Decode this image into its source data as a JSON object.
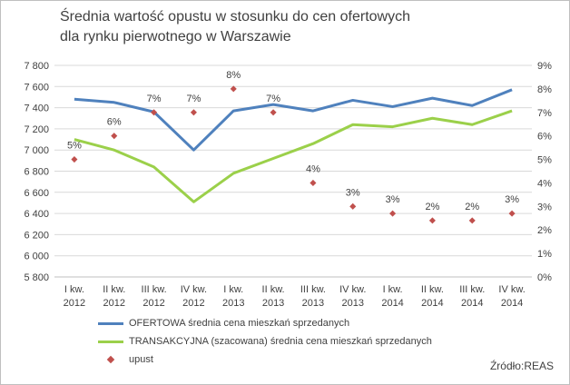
{
  "title": "Średnia wartość opustu w stosunku do cen ofertowych\ndla rynku pierwotnego w Warszawie",
  "source": "Źródło:REAS",
  "colors": {
    "ofertowa": "#4f81bd",
    "transakcyjna": "#9bd04a",
    "upust": "#c0504d",
    "grid": "#d9d9d9",
    "axis": "#bfbfbf"
  },
  "chart_data": {
    "type": "line",
    "categories": [
      [
        "I kw.",
        "2012"
      ],
      [
        "II kw.",
        "2012"
      ],
      [
        "III kw.",
        "2012"
      ],
      [
        "IV kw.",
        "2012"
      ],
      [
        "I kw.",
        "2013"
      ],
      [
        "II kw.",
        "2013"
      ],
      [
        "III kw.",
        "2013"
      ],
      [
        "IV kw.",
        "2013"
      ],
      [
        "I kw.",
        "2014"
      ],
      [
        "II kw.",
        "2014"
      ],
      [
        "III kw.",
        "2014"
      ],
      [
        "IV kw.",
        "2014"
      ]
    ],
    "y_left": {
      "min": 5800,
      "max": 7800,
      "step": 200,
      "ticks": [
        "5 800",
        "6 000",
        "6 200",
        "6 400",
        "6 600",
        "6 800",
        "7 000",
        "7 200",
        "7 400",
        "7 600",
        "7 800"
      ]
    },
    "y_right": {
      "min": 0,
      "max": 9,
      "step": 1,
      "ticks": [
        "0%",
        "1%",
        "2%",
        "3%",
        "4%",
        "5%",
        "6%",
        "7%",
        "8%",
        "9%"
      ]
    },
    "grid": "horizontal",
    "legend_position": "bottom",
    "series": [
      {
        "name": "OFERTOWA średnia cena mieszkań sprzedanych",
        "axis": "left",
        "kind": "line",
        "values": [
          7480,
          7450,
          7360,
          7000,
          7370,
          7430,
          7370,
          7470,
          7410,
          7490,
          7420,
          7570
        ]
      },
      {
        "name": "TRANSAKCYJNA (szacowana) średnia cena mieszkań sprzedanych",
        "axis": "left",
        "kind": "line",
        "values": [
          7100,
          7000,
          6840,
          6510,
          6780,
          6920,
          7060,
          7240,
          7220,
          7300,
          7240,
          7370
        ]
      },
      {
        "name": "upust",
        "axis": "right",
        "kind": "scatter",
        "values": [
          5.0,
          6.0,
          7.0,
          7.0,
          8.0,
          7.0,
          4.0,
          3.0,
          2.7,
          2.4,
          2.4,
          2.7
        ],
        "labels": [
          "5%",
          "6%",
          "7%",
          "7%",
          "8%",
          "7%",
          "4%",
          "3%",
          "3%",
          "2%",
          "2%",
          "3%"
        ]
      }
    ]
  }
}
